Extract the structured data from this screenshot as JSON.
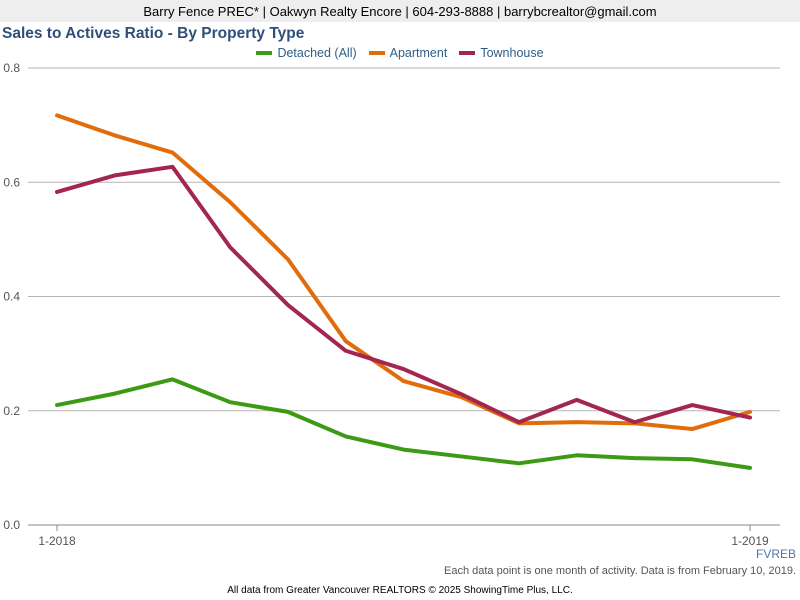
{
  "header": {
    "text": "Barry Fence PREC* | Oakwyn Realty Encore | 604-293-8888 | barrybcrealtor@gmail.com"
  },
  "chart_data": {
    "type": "line",
    "title": "Sales to Actives Ratio - By Property Type",
    "xlabel": "",
    "ylabel": "",
    "ylim": [
      0,
      0.8
    ],
    "yticks": [
      "0.0",
      "0.2",
      "0.4",
      "0.6",
      "0.8"
    ],
    "x": [
      1,
      2,
      3,
      4,
      5,
      6,
      7,
      8,
      9,
      10,
      11,
      12,
      13
    ],
    "xtick_labels": [
      {
        "index": 0,
        "label": "1-2018"
      },
      {
        "index": 12,
        "label": "1-2019"
      }
    ],
    "grid": true,
    "legend_position": "top-center",
    "series": [
      {
        "name": "Detached (All)",
        "color": "#3c9a14",
        "values": [
          0.21,
          0.23,
          0.255,
          0.215,
          0.198,
          0.155,
          0.132,
          0.12,
          0.108,
          0.122,
          0.117,
          0.115,
          0.1
        ]
      },
      {
        "name": "Apartment",
        "color": "#e06c0c",
        "values": [
          0.717,
          0.682,
          0.652,
          0.565,
          0.465,
          0.322,
          0.252,
          0.224,
          0.178,
          0.18,
          0.178,
          0.168,
          0.198
        ]
      },
      {
        "name": "Townhouse",
        "color": "#a3264f",
        "values": [
          0.583,
          0.612,
          0.627,
          0.486,
          0.385,
          0.305,
          0.273,
          0.229,
          0.18,
          0.219,
          0.18,
          0.21,
          0.188
        ]
      }
    ]
  },
  "source_tag": "FVREB",
  "footnote": "Each data point is one month of activity. Data is from February 10, 2019.",
  "copyright": "All data from Greater Vancouver REALTORS © 2025 ShowingTime Plus, LLC."
}
